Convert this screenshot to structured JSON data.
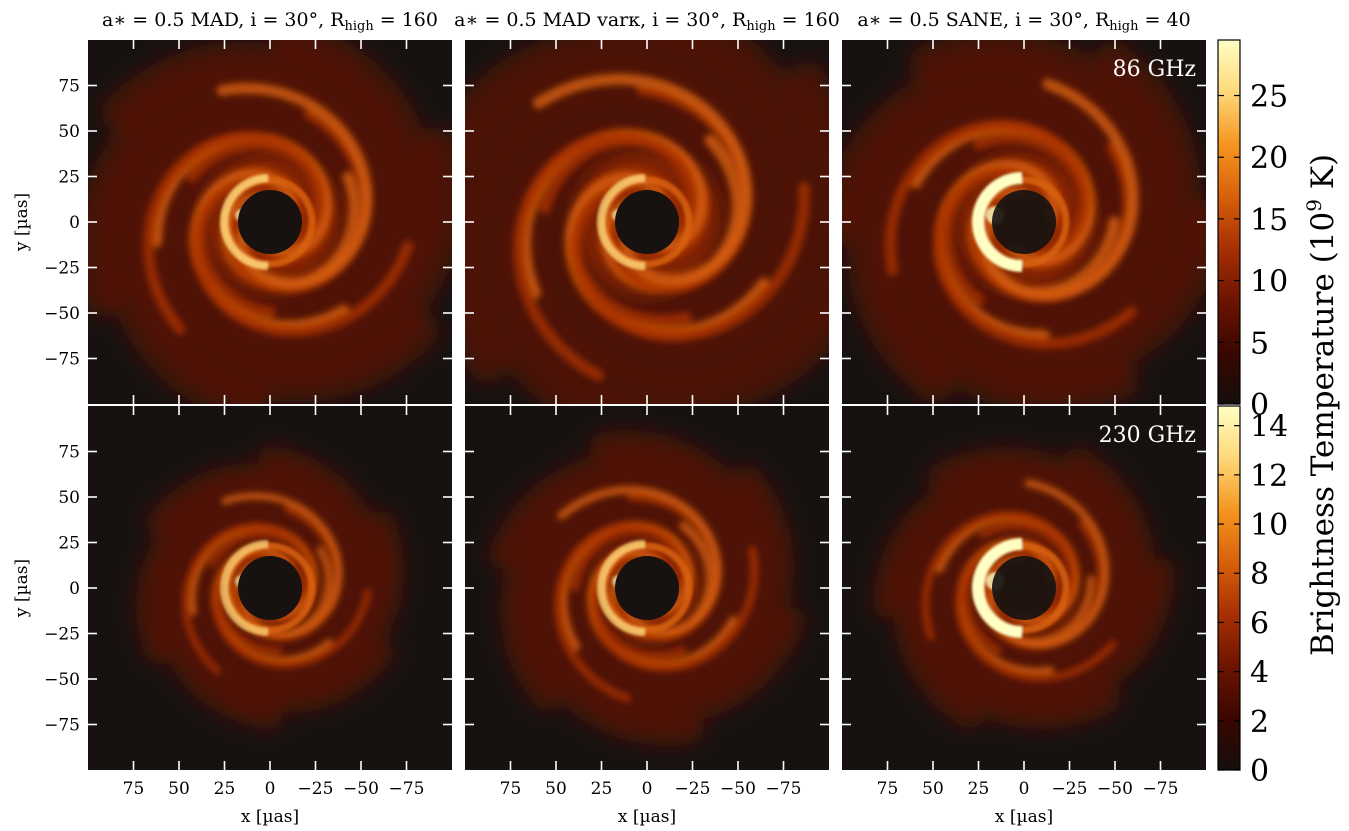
{
  "chart_data": {
    "type": "heatmap",
    "layout": "2x3 grid of image panels sharing axes, one colorbar per row",
    "columns": [
      {
        "title_model": "a∗ = 0.5 MAD",
        "title_params": ", i = 30°, R",
        "title_sub": "high",
        "title_value": " = 160"
      },
      {
        "title_model": "a∗ = 0.5 MAD varκ",
        "title_params": ", i = 30°, R",
        "title_sub": "high",
        "title_value": " = 160"
      },
      {
        "title_model": "a∗ = 0.5 SANE",
        "title_params": ", i = 30°, R",
        "title_sub": "high",
        "title_value": " = 40"
      }
    ],
    "rows": [
      {
        "frequency_label": "86 GHz",
        "colorbar_ticks": [
          "0",
          "5",
          "10",
          "15",
          "20",
          "25"
        ],
        "colorbar_range": [
          0,
          29.5
        ]
      },
      {
        "frequency_label": "230 GHz",
        "colorbar_ticks": [
          "0",
          "2",
          "4",
          "6",
          "8",
          "10",
          "12",
          "14"
        ],
        "colorbar_range": [
          0,
          14.8
        ]
      }
    ],
    "xlabel": "x [µas]",
    "ylabel": "y [µas]",
    "colorbar_label": "Brightness Temperature (10",
    "colorbar_label_sup": "9",
    "colorbar_label_end": " K)",
    "x_ticks": [
      "75",
      "50",
      "25",
      "0",
      "−25",
      "−50",
      "−75"
    ],
    "y_ticks": [
      "75",
      "50",
      "25",
      "0",
      "−25",
      "−50",
      "−75"
    ],
    "xlim": [
      100,
      -100
    ],
    "ylim": [
      -100,
      100
    ],
    "colormap": [
      "#140e0c",
      "#3a0700",
      "#6e1400",
      "#a83004",
      "#d8600a",
      "#f59620",
      "#ffd87a",
      "#ffffc4"
    ],
    "background_color": "#171210"
  }
}
